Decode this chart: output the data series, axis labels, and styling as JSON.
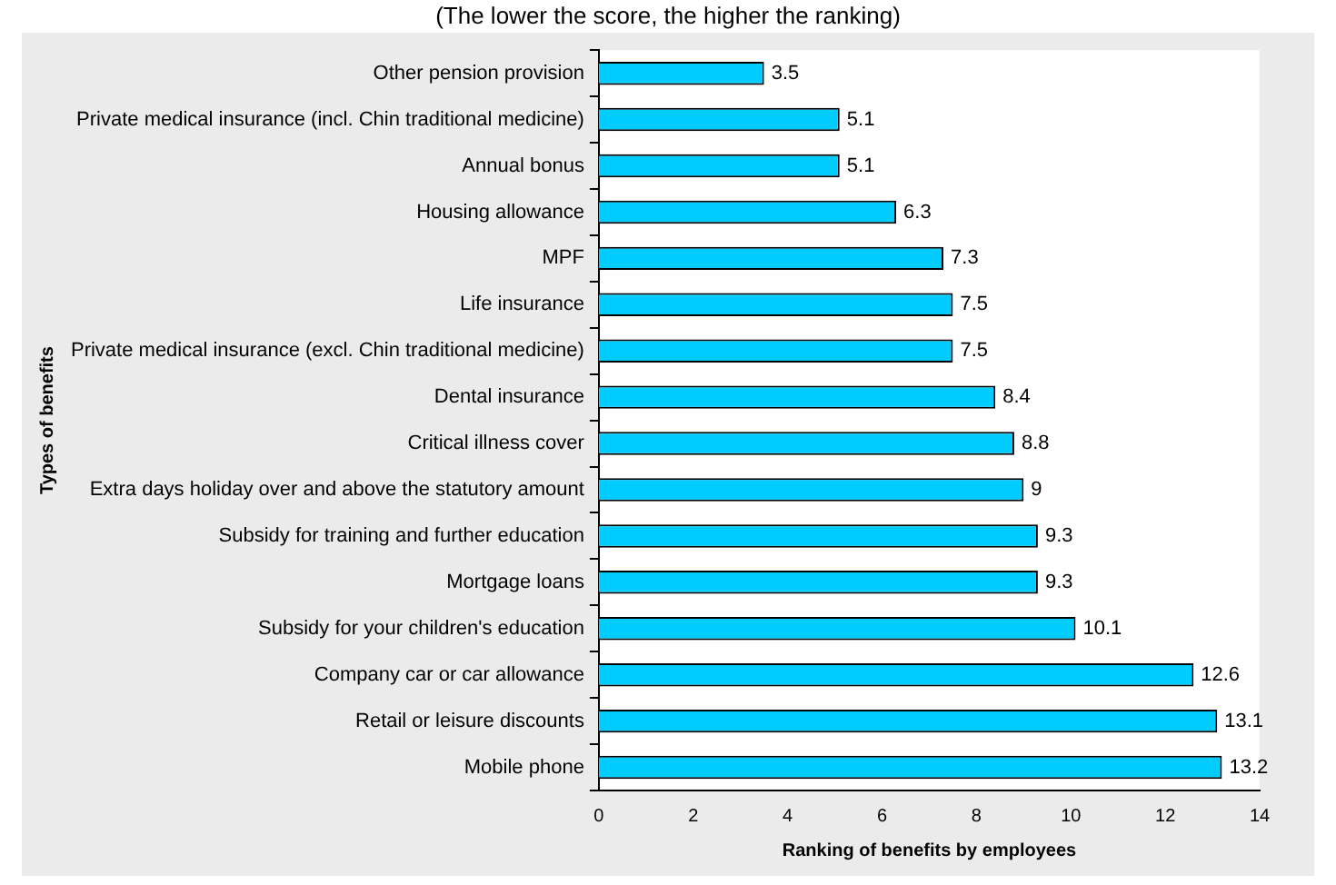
{
  "chart_data": {
    "type": "bar",
    "orientation": "horizontal",
    "title": "(The lower the score, the higher the ranking)",
    "xlabel": "Ranking of benefits by employees",
    "ylabel": "Types of benefits",
    "categories": [
      "Other pension provision",
      "Private medical insurance (incl. Chin traditional medicine)",
      "Annual bonus",
      "Housing allowance",
      "MPF",
      "Life insurance",
      "Private medical insurance (excl. Chin traditional medicine)",
      "Dental insurance",
      "Critical illness cover",
      "Extra days holiday over and above the statutory amount",
      "Subsidy for training and further education",
      "Mortgage loans",
      "Subsidy for your children's education",
      "Company car or car allowance",
      "Retail or leisure discounts",
      "Mobile phone"
    ],
    "values": [
      3.5,
      5.1,
      5.1,
      6.3,
      7.3,
      7.5,
      7.5,
      8.4,
      8.8,
      9,
      9.3,
      9.3,
      10.1,
      12.6,
      13.1,
      13.2
    ],
    "color": "#00ccff",
    "xlim": [
      0,
      14
    ],
    "xticks": [
      0,
      2,
      4,
      6,
      8,
      10,
      12,
      14
    ],
    "data_labels": true,
    "grid": false,
    "legend": false
  }
}
